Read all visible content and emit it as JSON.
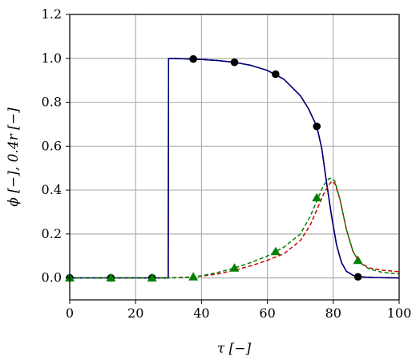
{
  "chart_data": {
    "type": "line",
    "xlabel": "τ [−]",
    "ylabel": "ϕ [−], 0.4r [−]",
    "xlim": [
      0,
      100
    ],
    "ylim": [
      -0.1,
      1.2
    ],
    "xticks": [
      0,
      20,
      40,
      60,
      80,
      100
    ],
    "xtick_labels": [
      "0",
      "20",
      "40",
      "60",
      "80",
      "100"
    ],
    "yticks": [
      0.0,
      0.2,
      0.4,
      0.6,
      0.8,
      1.0,
      1.2
    ],
    "ytick_labels": [
      "0.0",
      "0.2",
      "0.4",
      "0.6",
      "0.8",
      "1.0",
      "1.2"
    ],
    "grid": true,
    "series": [
      {
        "color": "#000000",
        "style": "solid",
        "marker": "none",
        "x": [
          0,
          29.9,
          30,
          35,
          40,
          45,
          50,
          55,
          60,
          65,
          70,
          72.5,
          75,
          76.5,
          78,
          79.5,
          81,
          82.5,
          84,
          86,
          88,
          92,
          100
        ],
        "values": [
          0,
          0,
          1.0,
          0.998,
          0.995,
          0.99,
          0.982,
          0.968,
          0.945,
          0.905,
          0.83,
          0.77,
          0.69,
          0.59,
          0.43,
          0.28,
          0.15,
          0.07,
          0.03,
          0.012,
          0.005,
          0.002,
          0.0
        ]
      },
      {
        "color": "#000080",
        "style": "solid",
        "marker": "none",
        "x": [
          0,
          29.9,
          30,
          35,
          40,
          45,
          50,
          55,
          60,
          65,
          70,
          72.5,
          75,
          76.5,
          78,
          79.5,
          81,
          82.5,
          84,
          86,
          88,
          92,
          100
        ],
        "values": [
          0,
          0,
          1.0,
          0.998,
          0.995,
          0.99,
          0.982,
          0.968,
          0.945,
          0.905,
          0.83,
          0.77,
          0.69,
          0.59,
          0.43,
          0.28,
          0.15,
          0.07,
          0.03,
          0.012,
          0.005,
          0.002,
          0.0
        ]
      },
      {
        "color": "#000000",
        "style": "none",
        "marker": "circle",
        "x": [
          0,
          12.5,
          25,
          37.5,
          50,
          62.5,
          75,
          87.5
        ],
        "values": [
          0.0,
          0.0,
          0.0,
          0.997,
          0.982,
          0.928,
          0.69,
          0.005
        ]
      },
      {
        "color": "#cc0000",
        "style": "dashed",
        "marker": "none",
        "x": [
          0,
          30,
          35,
          40,
          45,
          50,
          55,
          60,
          65,
          70,
          73,
          75,
          77,
          78.5,
          79.5,
          80.5,
          82,
          84,
          86,
          88,
          91,
          95,
          100
        ],
        "values": [
          0,
          0,
          0.003,
          0.008,
          0.018,
          0.035,
          0.055,
          0.08,
          0.11,
          0.17,
          0.24,
          0.31,
          0.38,
          0.42,
          0.44,
          0.43,
          0.36,
          0.22,
          0.12,
          0.07,
          0.045,
          0.035,
          0.028
        ]
      },
      {
        "color": "#008000",
        "style": "dashed",
        "marker": "none",
        "x": [
          0,
          30,
          35,
          37.5,
          40,
          45,
          50,
          55,
          60,
          62.5,
          65,
          70,
          73,
          75,
          77,
          78.5,
          79.5,
          80.5,
          82,
          84,
          86,
          88,
          91,
          95,
          100
        ],
        "values": [
          0,
          0,
          0.002,
          0.005,
          0.01,
          0.025,
          0.045,
          0.07,
          0.1,
          0.12,
          0.14,
          0.2,
          0.28,
          0.35,
          0.42,
          0.45,
          0.455,
          0.44,
          0.36,
          0.22,
          0.12,
          0.07,
          0.04,
          0.025,
          0.018
        ]
      },
      {
        "color": "#008000",
        "style": "none",
        "marker": "triangle",
        "x": [
          0,
          12.5,
          25,
          37.5,
          50,
          62.5,
          75,
          87.5
        ],
        "values": [
          0.0,
          0.0,
          0.0,
          0.005,
          0.045,
          0.12,
          0.365,
          0.08
        ]
      }
    ]
  }
}
